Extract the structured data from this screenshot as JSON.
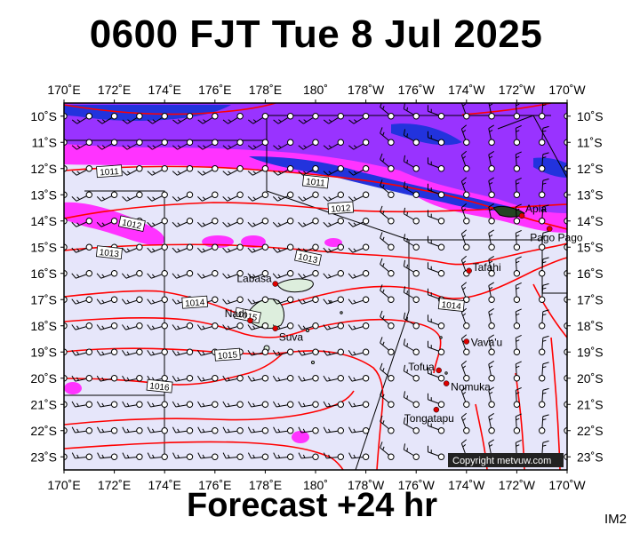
{
  "title": "0600 FJT Tue 8 Jul 2025",
  "footer": "Forecast +24 hr",
  "tag": "IM2",
  "copyright": "Copyright metvuw.com",
  "map": {
    "lon_range": [
      170,
      190
    ],
    "lat_range": [
      -23.5,
      -9.5
    ],
    "lon_ticks": [
      "170˚E",
      "172˚E",
      "174˚E",
      "176˚E",
      "178˚E",
      "180˚",
      "178˚W",
      "176˚W",
      "174˚W",
      "172˚W",
      "170˚W"
    ],
    "lat_ticks": [
      "10˚S",
      "11˚S",
      "12˚S",
      "13˚S",
      "14˚S",
      "15˚S",
      "16˚S",
      "17˚S",
      "18˚S",
      "19˚S",
      "20˚S",
      "21˚S",
      "22˚S",
      "23˚S"
    ],
    "colors": {
      "ocean": "#e6e6fa",
      "rain_light": "#ff33ff",
      "rain_mid": "#9933ff",
      "rain_heavy": "#2233dd",
      "isobar": "#ff0000",
      "land": "#ddeedd",
      "boundary": "#000000"
    }
  },
  "isobars": [
    {
      "label": "1011",
      "lon": 171.8,
      "lat": -12.1
    },
    {
      "label": "1011",
      "lon": 180.0,
      "lat": -12.5
    },
    {
      "label": "1012",
      "lon": 172.7,
      "lat": -14.1
    },
    {
      "label": "1012",
      "lon": 181.0,
      "lat": -13.5
    },
    {
      "label": "1013",
      "lon": 171.8,
      "lat": -15.2
    },
    {
      "label": "1013",
      "lon": 179.7,
      "lat": -15.4
    },
    {
      "label": "1014",
      "lon": 175.2,
      "lat": -17.1
    },
    {
      "label": "1014",
      "lon": 185.4,
      "lat": -17.2
    },
    {
      "label": "1015",
      "lon": 177.3,
      "lat": -17.6
    },
    {
      "label": "1015",
      "lon": 176.5,
      "lat": -19.1
    },
    {
      "label": "1016",
      "lon": 173.8,
      "lat": -20.3
    }
  ],
  "places": [
    {
      "name": "Labasa",
      "lon": 178.4,
      "lat": -16.4
    },
    {
      "name": "Nadi",
      "lon": 177.4,
      "lat": -17.8
    },
    {
      "name": "Suva",
      "lon": 178.4,
      "lat": -18.1
    },
    {
      "name": "Apia",
      "lon": 188.2,
      "lat": -13.8
    },
    {
      "name": "Pago Pago",
      "lon": 189.3,
      "lat": -14.3
    },
    {
      "name": "Tafahi",
      "lon": 186.1,
      "lat": -15.9
    },
    {
      "name": "Vava'u",
      "lon": 186.0,
      "lat": -18.6
    },
    {
      "name": "Tofua",
      "lon": 184.9,
      "lat": -19.7
    },
    {
      "name": "Nomuka",
      "lon": 185.2,
      "lat": -20.2
    },
    {
      "name": "Tongatapu",
      "lon": 184.8,
      "lat": -21.2
    }
  ]
}
